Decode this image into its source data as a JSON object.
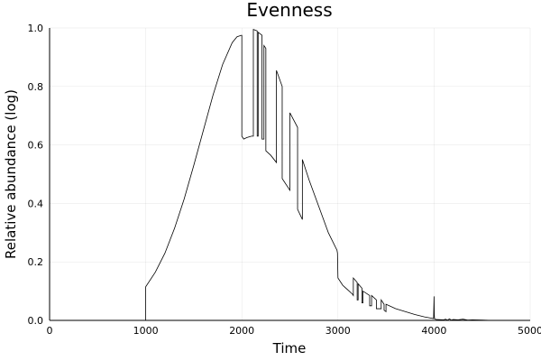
{
  "chart_data": {
    "type": "line",
    "title": "Evenness",
    "xlabel": "Time",
    "ylabel": "Relative abundance (log)",
    "xlim": [
      0,
      5000
    ],
    "ylim": [
      0,
      1
    ],
    "xticks": [
      0,
      1000,
      2000,
      3000,
      4000,
      5000
    ],
    "xtick_labels": [
      "0",
      "1000",
      "2000",
      "3000",
      "4000",
      "5000"
    ],
    "yticks": [
      0,
      0.2,
      0.4,
      0.6,
      0.8,
      1.0
    ],
    "ytick_labels": [
      "0.0",
      "0.2",
      "0.4",
      "0.6",
      "0.8",
      "1.0"
    ],
    "grid": true,
    "legend": false,
    "series": [
      {
        "color": "#000000",
        "x": [
          0,
          999,
          1000,
          1100,
          1200,
          1300,
          1400,
          1500,
          1600,
          1700,
          1800,
          1900,
          1950,
          1995,
          2000,
          2000,
          2020,
          2050,
          2100,
          2120,
          2120,
          2160,
          2160,
          2170,
          2170,
          2210,
          2210,
          2230,
          2230,
          2250,
          2250,
          2300,
          2360,
          2360,
          2420,
          2420,
          2500,
          2500,
          2580,
          2580,
          2630,
          2630,
          2700,
          2800,
          2900,
          2990,
          2995,
          3000,
          3050,
          3100,
          3150,
          3160,
          3160,
          3200,
          3200,
          3210,
          3210,
          3250,
          3250,
          3260,
          3260,
          3330,
          3330,
          3350,
          3350,
          3400,
          3400,
          3450,
          3450,
          3480,
          3480,
          3500,
          3500,
          3600,
          3700,
          3800,
          3900,
          3995,
          4000,
          4002,
          4005,
          4020,
          4100,
          4120,
          4140,
          4160,
          4180,
          4200,
          4250,
          4300,
          4350,
          4400,
          4500,
          4600,
          5000
        ],
        "y": [
          0,
          0,
          0.115,
          0.165,
          0.23,
          0.315,
          0.415,
          0.53,
          0.65,
          0.77,
          0.875,
          0.95,
          0.97,
          0.975,
          0.975,
          0.63,
          0.62,
          0.625,
          0.63,
          0.63,
          0.995,
          0.99,
          0.63,
          0.63,
          0.985,
          0.975,
          0.62,
          0.62,
          0.94,
          0.93,
          0.58,
          0.565,
          0.54,
          0.855,
          0.8,
          0.485,
          0.445,
          0.71,
          0.66,
          0.38,
          0.345,
          0.55,
          0.48,
          0.39,
          0.3,
          0.24,
          0.23,
          0.145,
          0.12,
          0.105,
          0.09,
          0.085,
          0.145,
          0.13,
          0.07,
          0.07,
          0.125,
          0.11,
          0.06,
          0.06,
          0.1,
          0.085,
          0.05,
          0.05,
          0.085,
          0.07,
          0.04,
          0.04,
          0.07,
          0.055,
          0.035,
          0.03,
          0.055,
          0.04,
          0.03,
          0.02,
          0.012,
          0.006,
          0.082,
          0.02,
          0.006,
          0.003,
          0.002,
          0.004,
          0.001,
          0.005,
          0.001,
          0.003,
          0.002,
          0.004,
          0.001,
          0.002,
          0.001,
          0,
          0
        ]
      }
    ]
  }
}
